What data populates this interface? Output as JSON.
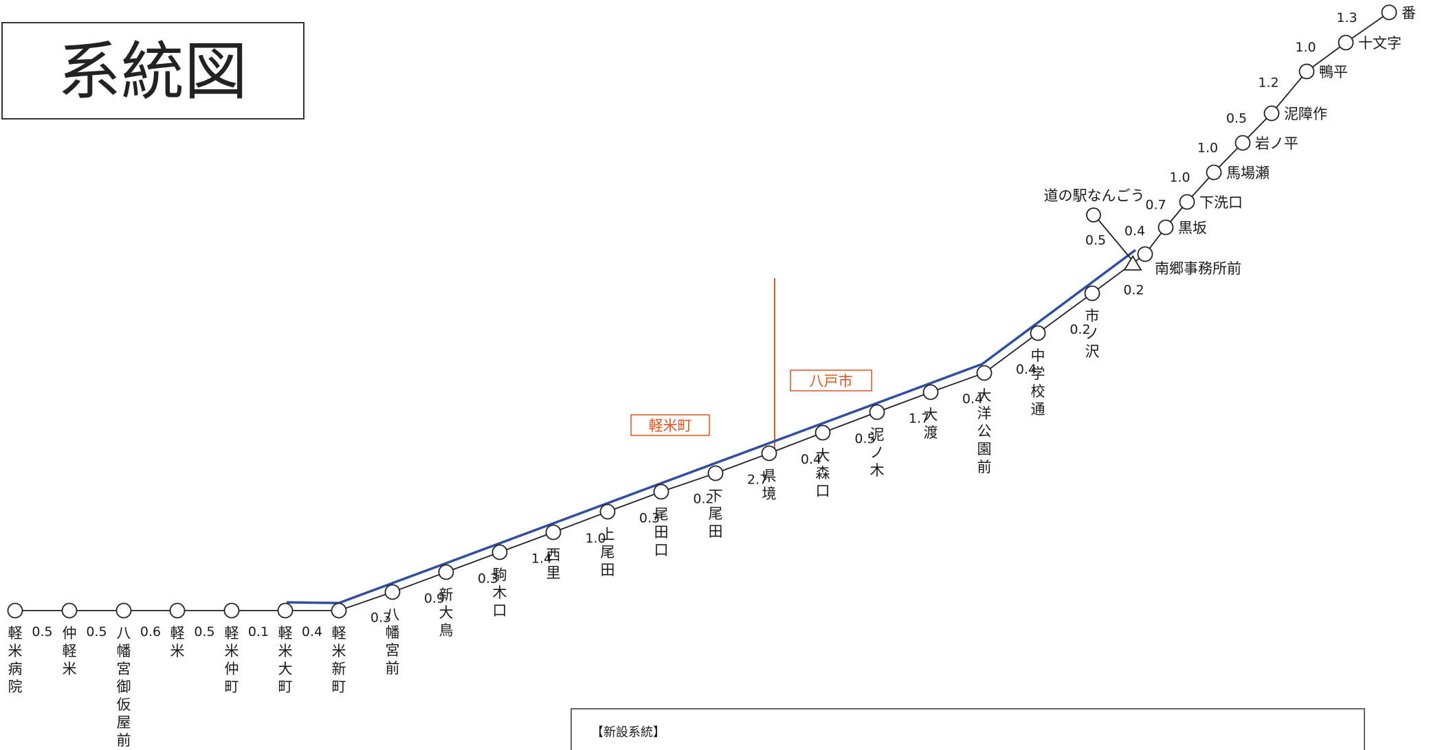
{
  "title": "系統図",
  "legend_box": {
    "label": "【新設系統】"
  },
  "regions": {
    "west": "軽米町",
    "east": "八戸市"
  },
  "colors": {
    "route": "#2f4ea1",
    "boundary": "#e2531f",
    "line": "#222222"
  },
  "stops": [
    {
      "name": "軽米病院",
      "dist_next": "0.5"
    },
    {
      "name": "仲軽米",
      "dist_next": "0.5"
    },
    {
      "name": "八幡宮御仮屋前",
      "dist_next": "0.6"
    },
    {
      "name": "軽米",
      "dist_next": "0.5"
    },
    {
      "name": "軽米仲町",
      "dist_next": "0.1"
    },
    {
      "name": "軽米大町",
      "dist_next": "0.4"
    },
    {
      "name": "軽米新町",
      "dist_next": "0.3"
    },
    {
      "name": "八幡宮前",
      "dist_next": "0.9"
    },
    {
      "name": "新大鳥",
      "dist_next": "0.3"
    },
    {
      "name": "駒木口",
      "dist_next": "1.4"
    },
    {
      "name": "西里",
      "dist_next": "1.0"
    },
    {
      "name": "上尾田",
      "dist_next": "0.3"
    },
    {
      "name": "尾田口",
      "dist_next": "0.2"
    },
    {
      "name": "下尾田",
      "dist_next": "2.7"
    },
    {
      "name": "県境",
      "dist_next": "0.4"
    },
    {
      "name": "大森口",
      "dist_next": "0.5"
    },
    {
      "name": "泥ノ木",
      "dist_next": "1.7"
    },
    {
      "name": "大渡",
      "dist_next": "0.4"
    },
    {
      "name": "大洋公園前",
      "dist_next": "0.4"
    },
    {
      "name": "中学校通",
      "dist_next": "0.2"
    },
    {
      "name": "市ノ沢",
      "dist_next": "0.2"
    },
    {
      "name": "南郷事務所前",
      "dist_next": "0.4"
    },
    {
      "name": "黒坂",
      "dist_next": "0.7"
    },
    {
      "name": "下洗口",
      "dist_next": "1.0"
    },
    {
      "name": "馬場瀬",
      "dist_next": "1.0"
    },
    {
      "name": "岩ノ平",
      "dist_next": "0.5"
    },
    {
      "name": "泥障作",
      "dist_next": "1.2"
    },
    {
      "name": "鴨平",
      "dist_next": "1.0"
    },
    {
      "name": "十文字",
      "dist_next": "1.3"
    },
    {
      "name": "番",
      "dist_next": ""
    }
  ],
  "branch": {
    "name": "道の駅なんごう",
    "dist": "0.5"
  }
}
